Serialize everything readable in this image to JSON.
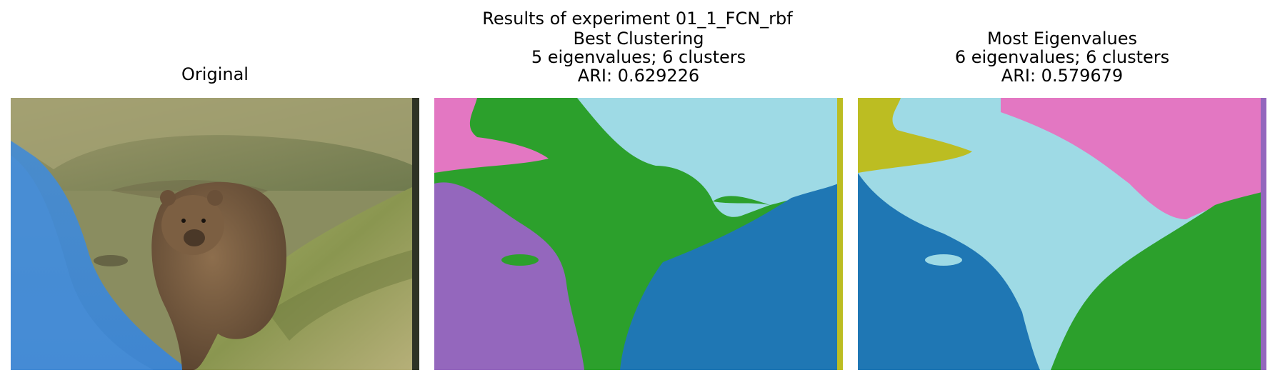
{
  "figure": {
    "suptitle": "Results of experiment 01_1_FCN_rbf",
    "panels": [
      {
        "title_lines": [
          "Original"
        ]
      },
      {
        "title_lines": [
          "Best Clustering",
          "5 eigenvalues; 6 clusters",
          "ARI: 0.629226"
        ]
      },
      {
        "title_lines": [
          "Most Eigenvalues",
          "6 eigenvalues; 6 clusters",
          "ARI: 0.579679"
        ]
      }
    ]
  },
  "colors": {
    "blue": "#1f77b4",
    "green": "#2ca02c",
    "purple": "#9467bd",
    "pink": "#e377c2",
    "olive": "#bcbd22",
    "cyan": "#9edae5"
  }
}
